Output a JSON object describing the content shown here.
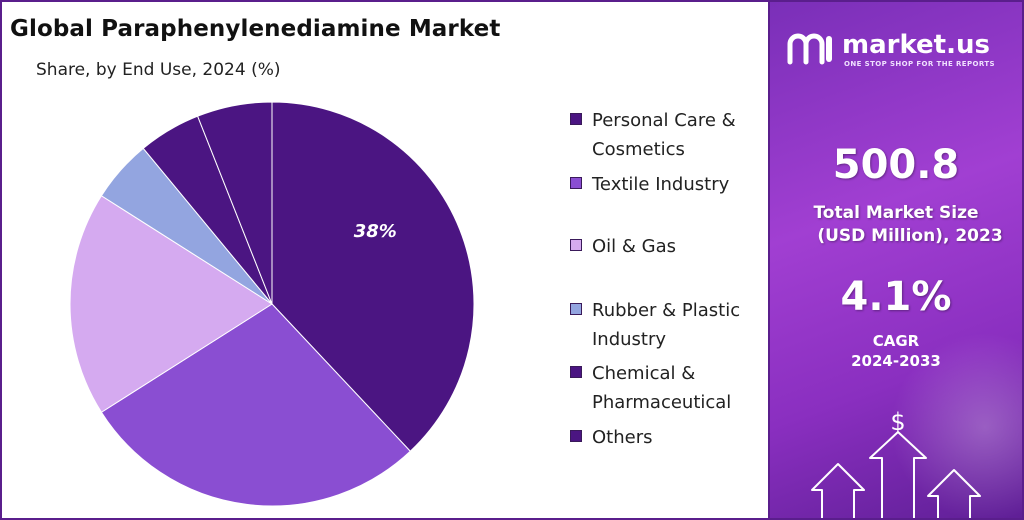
{
  "header": {
    "title": "Global Paraphenylenediamine Market",
    "subtitle": "Share, by End Use, 2024 (%)"
  },
  "chart_data": {
    "type": "pie",
    "title": "Global Paraphenylenediamine Market",
    "subtitle": "Share, by End Use, 2024 (%)",
    "slices": [
      {
        "name": "Personal Care & Cosmetics",
        "value": 38,
        "label": "38%",
        "color": "#4b1582"
      },
      {
        "name": "Textile Industry",
        "value": 28,
        "label": "",
        "color": "#8a4ed2"
      },
      {
        "name": "Oil & Gas",
        "value": 18,
        "label": "",
        "color": "#d5aaf0"
      },
      {
        "name": "Rubber & Plastic Industry",
        "value": 5,
        "label": "",
        "color": "#93a5e0"
      },
      {
        "name": "Chemical & Pharmaceutical",
        "value": 5,
        "label": "",
        "color": "#4b1582"
      },
      {
        "name": "Others",
        "value": 6,
        "label": "",
        "color": "#4b1582"
      }
    ],
    "legend_position": "right"
  },
  "legend": {
    "items": [
      {
        "lines": [
          "Personal Care &",
          "Cosmetics"
        ],
        "color": "#4b1582"
      },
      {
        "lines": [
          "Textile Industry"
        ],
        "color": "#8a4ed2"
      },
      {
        "lines": [
          "Oil & Gas"
        ],
        "color": "#d5aaf0"
      },
      {
        "lines": [
          "Rubber & Plastic",
          "Industry"
        ],
        "color": "#93a5e0"
      },
      {
        "lines": [
          "Chemical &",
          "Pharmaceutical"
        ],
        "color": "#4b1582"
      },
      {
        "lines": [
          "Others"
        ],
        "color": "#4b1582"
      }
    ]
  },
  "brand": {
    "name": "market.us",
    "tagline": "ONE STOP SHOP FOR THE REPORTS"
  },
  "stats": {
    "market_size_value": "500.8",
    "market_size_label_line1": "Total Market Size",
    "market_size_label_line2": "(USD Million), 2023",
    "cagr_value": "4.1%",
    "cagr_label": "CAGR",
    "cagr_period": "2024-2033"
  },
  "icons": {
    "logo": "market-us-logo-icon",
    "dollar": "dollar-icon",
    "arrows": "growth-arrows-icon"
  },
  "colors": {
    "accent": "#5a1e8c",
    "panel_start": "#7a2fb8",
    "panel_end": "#5f1f96"
  }
}
